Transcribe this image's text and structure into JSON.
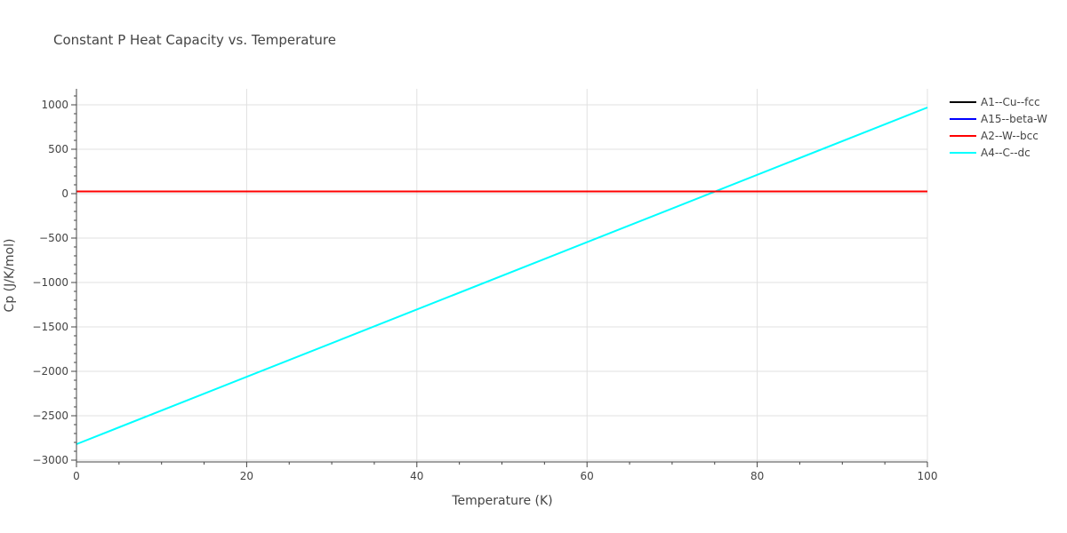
{
  "chart_data": {
    "type": "line",
    "title": "Constant P Heat Capacity vs. Temperature",
    "xlabel": "Temperature (K)",
    "ylabel": "Cp (J/K/mol)",
    "xlim": [
      0,
      100
    ],
    "ylim": [
      -3020,
      1180
    ],
    "xticks": [
      0,
      20,
      40,
      60,
      80,
      100
    ],
    "yticks": [
      -3000,
      -2500,
      -2000,
      -1500,
      -1000,
      -500,
      0,
      500,
      1000
    ],
    "xtick_labels": [
      "0",
      "20",
      "40",
      "60",
      "80",
      "100"
    ],
    "ytick_labels": [
      "−3000",
      "−2500",
      "−2000",
      "−1500",
      "−1000",
      "−500",
      "0",
      "500",
      "1000"
    ],
    "grid": true,
    "legend_position": "right",
    "series": [
      {
        "name": "A1--Cu--fcc",
        "color": "#000000",
        "x": [
          0,
          100
        ],
        "y": [
          25,
          25
        ]
      },
      {
        "name": "A15--beta-W",
        "color": "#0000ff",
        "x": [
          0,
          100
        ],
        "y": [
          25,
          25
        ]
      },
      {
        "name": "A2--W--bcc",
        "color": "#ff0000",
        "x": [
          0,
          100
        ],
        "y": [
          25,
          25
        ]
      },
      {
        "name": "A4--C--dc",
        "color": "#00ffff",
        "x": [
          0,
          100
        ],
        "y": [
          -2820,
          970
        ]
      }
    ]
  }
}
